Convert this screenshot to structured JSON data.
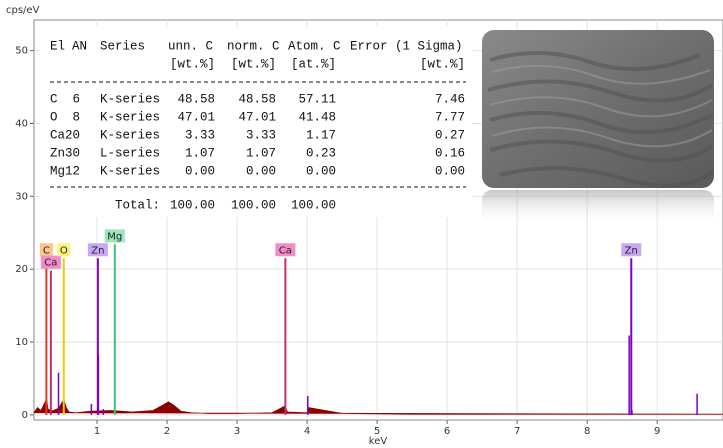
{
  "chart_data": {
    "type": "spectrum",
    "y_label": "cps/eV",
    "x_label": "keV",
    "xlim": [
      0.1,
      9.94
    ],
    "xticks": [
      1,
      2,
      3,
      4,
      5,
      6,
      7,
      8,
      9
    ],
    "ylim": [
      -0.7,
      54.2
    ],
    "yticks": [
      0,
      10,
      20,
      30,
      40,
      50
    ],
    "grid": true,
    "series": [
      {
        "type": "area",
        "color": "#8b0000",
        "x": [
          0.1,
          0.15,
          0.2,
          0.26,
          0.28,
          0.3,
          0.35,
          0.45,
          0.5,
          0.53,
          0.56,
          0.6,
          0.7,
          0.9,
          1.2,
          1.5,
          1.8,
          1.95,
          2.02,
          2.1,
          2.2,
          2.35,
          2.6,
          3.0,
          3.5,
          3.68,
          3.72,
          4.0,
          4.02,
          4.5,
          5.5,
          7,
          8.6,
          9.0,
          9.5,
          9.94
        ],
        "values": [
          0.3,
          1.0,
          0.6,
          1.8,
          2.2,
          0.8,
          0.5,
          0.9,
          1.7,
          2.0,
          1.0,
          0.4,
          0.3,
          0.5,
          0.6,
          0.4,
          0.6,
          1.4,
          1.8,
          1.3,
          0.5,
          0.3,
          0.2,
          0.2,
          0.3,
          1.2,
          0.4,
          0.3,
          1.0,
          0.2,
          0.1,
          0.1,
          0.1,
          0.1,
          0.1,
          0.1
        ]
      },
      {
        "type": "stem",
        "color": "#7a00c8",
        "x": [
          0.45,
          0.92,
          1.02,
          1.09,
          4.01,
          8.6,
          8.64,
          9.57
        ],
        "values": [
          5.8,
          1.5,
          8.2,
          0.8,
          2.6,
          10.9,
          0.6,
          2.9
        ]
      }
    ],
    "markers": [
      {
        "label": "C",
        "color": "#e03a2a",
        "label_color": "#ffc48a",
        "x": 0.277,
        "value": 21.5
      },
      {
        "label": "Ca",
        "color": "#c0306a",
        "label_color": "#f08cc8",
        "x": 0.341,
        "value": 19.8
      },
      {
        "label": "O",
        "color": "#e6d000",
        "label_color": "#fff27a",
        "x": 0.525,
        "value": 21.5
      },
      {
        "label": "Zn",
        "color": "#8000c0",
        "label_color": "#c8a8f4",
        "x": 1.012,
        "value": 21.5
      },
      {
        "label": "Mg",
        "color": "#40c080",
        "label_color": "#98e8b8",
        "x": 1.254,
        "value": 23.4
      },
      {
        "label": "Ca",
        "color": "#c0306a",
        "label_color": "#f08cc8",
        "x": 3.69,
        "value": 21.5
      },
      {
        "label": "Zn",
        "color": "#8000c0",
        "label_color": "#c8a8f4",
        "x": 8.63,
        "value": 21.5
      }
    ]
  },
  "table": {
    "header": [
      "El",
      "AN",
      "Series",
      "unn. C",
      "norm. C",
      "Atom. C",
      "Error (1 Sigma)"
    ],
    "units": [
      "[wt.%]",
      "[wt.%]",
      "[at.%]",
      "[wt.%]"
    ],
    "rows": [
      [
        "C",
        "6",
        "K-series",
        "48.58",
        "48.58",
        "57.11",
        "7.46"
      ],
      [
        "O",
        "8",
        "K-series",
        "47.01",
        "47.01",
        "41.48",
        "7.77"
      ],
      [
        "Ca",
        "20",
        "K-series",
        "3.33",
        "3.33",
        "1.17",
        "0.27"
      ],
      [
        "Zn",
        "30",
        "L-series",
        "1.07",
        "1.07",
        "0.23",
        "0.16"
      ],
      [
        "Mg",
        "12",
        "K-series",
        "0.00",
        "0.00",
        "0.00",
        "0.00"
      ]
    ],
    "total": [
      "Total:",
      "100.00",
      "100.00",
      "100.00"
    ]
  }
}
